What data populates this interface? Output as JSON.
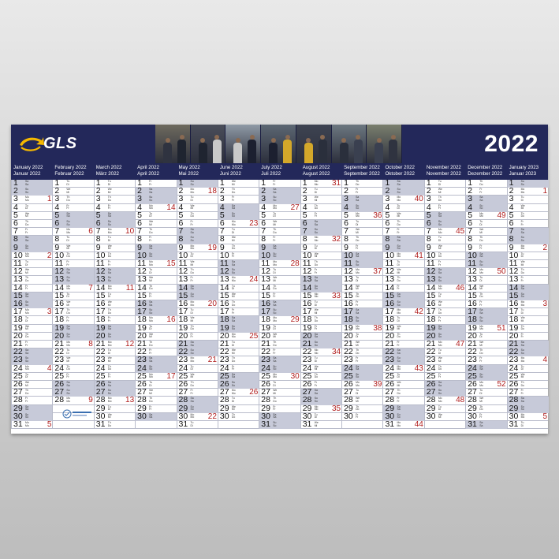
{
  "brand": {
    "logo_text": "GLS",
    "year": "2022"
  },
  "colors": {
    "navy": "#23285a",
    "weekend": "#c7cad9",
    "week_number": "#b11d1d",
    "accent": "#f5b800"
  },
  "months": [
    {
      "en": "January 2022",
      "de": "Januar 2022",
      "start_wd": 5,
      "days": 31,
      "kw": {
        "3": 1,
        "10": 2,
        "17": 3,
        "24": 4,
        "31": 5
      }
    },
    {
      "en": "February 2022",
      "de": "Februar 2022",
      "start_wd": 1,
      "days": 28,
      "kw": {
        "7": 6,
        "14": 7,
        "21": 8,
        "28": 9
      }
    },
    {
      "en": "March 2022",
      "de": "März 2022",
      "start_wd": 1,
      "days": 31,
      "kw": {
        "7": 10,
        "14": 11,
        "21": 12,
        "28": 13
      }
    },
    {
      "en": "April 2022",
      "de": "April 2022",
      "start_wd": 4,
      "days": 30,
      "kw": {
        "4": 14,
        "11": 15,
        "18": 16,
        "25": 17
      }
    },
    {
      "en": "May 2022",
      "de": "Mai 2022",
      "start_wd": 6,
      "days": 31,
      "kw": {
        "2": 18,
        "9": 19,
        "16": 20,
        "23": 21,
        "30": 22
      }
    },
    {
      "en": "June 2022",
      "de": "Juni 2022",
      "start_wd": 2,
      "days": 30,
      "kw": {
        "6": 23,
        "13": 24,
        "20": 25,
        "27": 26
      }
    },
    {
      "en": "July 2022",
      "de": "Juli 2022",
      "start_wd": 4,
      "days": 31,
      "kw": {
        "4": 27,
        "11": 28,
        "18": 29,
        "25": 30
      }
    },
    {
      "en": "August 2022",
      "de": "August 2022",
      "start_wd": 0,
      "days": 31,
      "kw": {
        "1": 31,
        "8": 32,
        "15": 33,
        "22": 34,
        "29": 35
      }
    },
    {
      "en": "September 2022",
      "de": "September 2022",
      "start_wd": 3,
      "days": 30,
      "kw": {
        "5": 36,
        "12": 37,
        "19": 38,
        "26": 39
      }
    },
    {
      "en": "October 2022",
      "de": "Oktober 2022",
      "start_wd": 5,
      "days": 31,
      "kw": {
        "3": 40,
        "10": 41,
        "17": 42,
        "24": 43,
        "31": 44
      }
    },
    {
      "en": "November 2022",
      "de": "November 2022",
      "start_wd": 1,
      "days": 30,
      "kw": {
        "7": 45,
        "14": 46,
        "21": 47,
        "28": 48
      }
    },
    {
      "en": "December 2022",
      "de": "Dezember 2022",
      "start_wd": 3,
      "days": 31,
      "kw": {
        "5": 49,
        "12": 50,
        "19": 51,
        "26": 52
      }
    },
    {
      "en": "January 2023",
      "de": "Januar 2023",
      "start_wd": 6,
      "days": 31,
      "kw": {
        "2": 1,
        "9": 2,
        "16": 3,
        "23": 4,
        "30": 5
      }
    }
  ],
  "weekday_abbr": {
    "en": [
      "Mo",
      "Tu",
      "We",
      "Th",
      "Fr",
      "Sa",
      "Su"
    ],
    "de": [
      "Mo",
      "Di",
      "Mi",
      "Do",
      "Fr",
      "Sa",
      "So"
    ]
  }
}
